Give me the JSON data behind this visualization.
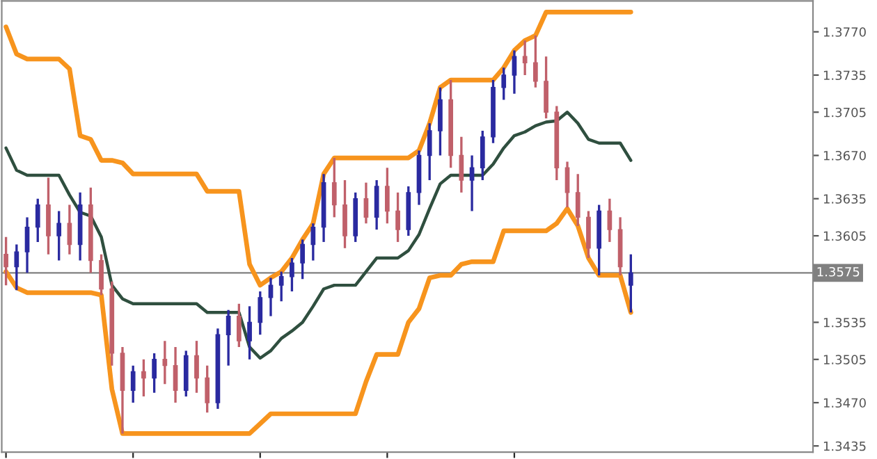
{
  "chart_data": {
    "type": "candlestick",
    "categories": [
      null,
      null,
      null,
      null,
      null,
      null,
      null,
      null,
      null,
      null,
      null,
      null,
      null,
      null,
      null,
      null,
      null,
      null,
      null,
      null,
      null,
      null,
      null,
      null,
      null,
      null,
      null,
      null,
      null,
      null,
      null,
      null,
      null,
      null,
      null,
      null,
      null,
      null,
      null,
      null,
      null,
      null,
      null,
      null,
      null,
      null,
      null,
      null,
      null,
      null,
      null,
      null,
      null,
      null,
      null,
      null,
      null,
      null,
      null,
      null
    ],
    "ohlc": [
      [
        1.359,
        1.3604,
        1.3565,
        1.358
      ],
      [
        1.358,
        1.3598,
        1.3561,
        1.3592
      ],
      [
        1.3592,
        1.362,
        1.3575,
        1.3612
      ],
      [
        1.3612,
        1.3635,
        1.36,
        1.363
      ],
      [
        1.363,
        1.3652,
        1.359,
        1.3605
      ],
      [
        1.3605,
        1.3625,
        1.3585,
        1.3615
      ],
      [
        1.3615,
        1.363,
        1.359,
        1.3598
      ],
      [
        1.3598,
        1.364,
        1.3585,
        1.363
      ],
      [
        1.363,
        1.3644,
        1.3575,
        1.3585
      ],
      [
        1.3585,
        1.359,
        1.3557,
        1.3562
      ],
      [
        1.3562,
        1.3568,
        1.35,
        1.351
      ],
      [
        1.351,
        1.3515,
        1.3445,
        1.348
      ],
      [
        1.348,
        1.35,
        1.347,
        1.3495
      ],
      [
        1.3495,
        1.3505,
        1.3475,
        1.349
      ],
      [
        1.349,
        1.351,
        1.3478,
        1.3505
      ],
      [
        1.3505,
        1.352,
        1.3485,
        1.35
      ],
      [
        1.35,
        1.3515,
        1.347,
        1.348
      ],
      [
        1.348,
        1.3512,
        1.3475,
        1.3508
      ],
      [
        1.3508,
        1.352,
        1.3478,
        1.349
      ],
      [
        1.349,
        1.35,
        1.3462,
        1.347
      ],
      [
        1.347,
        1.353,
        1.3465,
        1.3525
      ],
      [
        1.3525,
        1.3545,
        1.35,
        1.354
      ],
      [
        1.354,
        1.355,
        1.3515,
        1.352
      ],
      [
        1.352,
        1.3548,
        1.3505,
        1.3535
      ],
      [
        1.3535,
        1.356,
        1.3525,
        1.3555
      ],
      [
        1.3555,
        1.3571,
        1.354,
        1.3565
      ],
      [
        1.3565,
        1.3576,
        1.3552,
        1.3572
      ],
      [
        1.3572,
        1.3587,
        1.356,
        1.3583
      ],
      [
        1.3583,
        1.3602,
        1.357,
        1.3598
      ],
      [
        1.3598,
        1.3615,
        1.3585,
        1.3612
      ],
      [
        1.3612,
        1.3655,
        1.36,
        1.3648
      ],
      [
        1.3648,
        1.3668,
        1.362,
        1.363
      ],
      [
        1.363,
        1.365,
        1.3595,
        1.3605
      ],
      [
        1.3605,
        1.364,
        1.36,
        1.3635
      ],
      [
        1.3635,
        1.3648,
        1.3615,
        1.362
      ],
      [
        1.362,
        1.365,
        1.361,
        1.3645
      ],
      [
        1.3645,
        1.366,
        1.3615,
        1.3625
      ],
      [
        1.3625,
        1.364,
        1.36,
        1.361
      ],
      [
        1.361,
        1.3645,
        1.3605,
        1.364
      ],
      [
        1.364,
        1.3674,
        1.363,
        1.367
      ],
      [
        1.367,
        1.3696,
        1.365,
        1.369
      ],
      [
        1.369,
        1.3725,
        1.367,
        1.3715
      ],
      [
        1.3715,
        1.3731,
        1.366,
        1.367
      ],
      [
        1.367,
        1.3685,
        1.364,
        1.365
      ],
      [
        1.365,
        1.367,
        1.3625,
        1.366
      ],
      [
        1.366,
        1.369,
        1.365,
        1.3685
      ],
      [
        1.3685,
        1.3731,
        1.368,
        1.3725
      ],
      [
        1.3725,
        1.3741,
        1.3715,
        1.3735
      ],
      [
        1.3735,
        1.3755,
        1.372,
        1.375
      ],
      [
        1.375,
        1.3763,
        1.3735,
        1.3745
      ],
      [
        1.3745,
        1.3767,
        1.3725,
        1.373
      ],
      [
        1.373,
        1.375,
        1.37,
        1.3705
      ],
      [
        1.3705,
        1.371,
        1.365,
        1.366
      ],
      [
        1.366,
        1.3665,
        1.3628,
        1.364
      ],
      [
        1.364,
        1.3655,
        1.3613,
        1.362
      ],
      [
        1.362,
        1.3625,
        1.3587,
        1.3595
      ],
      [
        1.3595,
        1.363,
        1.3573,
        1.3625
      ],
      [
        1.3625,
        1.3635,
        1.36,
        1.361
      ],
      [
        1.361,
        1.362,
        1.3573,
        1.358
      ],
      [
        1.3565,
        1.359,
        1.3543,
        1.3575
      ]
    ],
    "colors": [
      "#c0606a",
      "#2a2aa0",
      "#2a2aa0",
      "#2a2aa0",
      "#c0606a",
      "#2a2aa0",
      "#c0606a",
      "#2a2aa0",
      "#c0606a",
      "#c0606a",
      "#c0606a",
      "#c0606a",
      "#2a2aa0",
      "#c0606a",
      "#2a2aa0",
      "#c0606a",
      "#c0606a",
      "#2a2aa0",
      "#c0606a",
      "#c0606a",
      "#2a2aa0",
      "#2a2aa0",
      "#c0606a",
      "#2a2aa0",
      "#2a2aa0",
      "#2a2aa0",
      "#2a2aa0",
      "#2a2aa0",
      "#2a2aa0",
      "#2a2aa0",
      "#2a2aa0",
      "#c0606a",
      "#c0606a",
      "#2a2aa0",
      "#c0606a",
      "#2a2aa0",
      "#c0606a",
      "#c0606a",
      "#2a2aa0",
      "#2a2aa0",
      "#2a2aa0",
      "#2a2aa0",
      "#c0606a",
      "#c0606a",
      "#2a2aa0",
      "#2a2aa0",
      "#2a2aa0",
      "#2a2aa0",
      "#2a2aa0",
      "#c0606a",
      "#c0606a",
      "#c0606a",
      "#c0606a",
      "#c0606a",
      "#c0606a",
      "#c0606a",
      "#2a2aa0",
      "#c0606a",
      "#c0606a",
      "#2a2aa0"
    ],
    "series": [
      {
        "type": "line",
        "color": "#f7941d",
        "values": [
          1.3774,
          1.3752,
          1.3748,
          1.3748,
          1.3748,
          1.3748,
          1.374,
          1.3686,
          1.3683,
          1.3666,
          1.3666,
          1.3664,
          1.3655,
          1.3655,
          1.3655,
          1.3655,
          1.3655,
          1.3655,
          1.3655,
          1.3641,
          1.3641,
          1.3641,
          1.3641,
          1.3582,
          1.3565,
          1.3571,
          1.3576,
          1.3587,
          1.3602,
          1.3615,
          1.3655,
          1.3668,
          1.3668,
          1.3668,
          1.3668,
          1.3668,
          1.3668,
          1.3668,
          1.3668,
          1.3674,
          1.3696,
          1.3725,
          1.3731,
          1.3731,
          1.3731,
          1.3731,
          1.3731,
          1.3741,
          1.3755,
          1.3763,
          1.3767,
          1.3786,
          1.3786,
          1.3786,
          1.3786,
          1.3786,
          1.3786,
          1.3786,
          1.3786,
          1.3786
        ]
      },
      {
        "type": "line",
        "color": "#2f4f3f",
        "values": [
          1.3676,
          1.3658,
          1.3654,
          1.3654,
          1.3654,
          1.3654,
          1.3638,
          1.3624,
          1.3621,
          1.3604,
          1.3565,
          1.3554,
          1.355,
          1.355,
          1.355,
          1.355,
          1.355,
          1.355,
          1.355,
          1.3543,
          1.3543,
          1.3543,
          1.3543,
          1.3515,
          1.3506,
          1.3512,
          1.3522,
          1.3528,
          1.3535,
          1.3548,
          1.3562,
          1.3565,
          1.3565,
          1.3565,
          1.3576,
          1.3587,
          1.3587,
          1.3587,
          1.3593,
          1.3606,
          1.3627,
          1.3647,
          1.3654,
          1.3654,
          1.3654,
          1.3654,
          1.3663,
          1.3676,
          1.3686,
          1.3689,
          1.3694,
          1.3697,
          1.3698,
          1.3705,
          1.3696,
          1.3683,
          1.368,
          1.368,
          1.368,
          1.3666
        ]
      },
      {
        "type": "line",
        "color": "#f7941d",
        "values": [
          1.3576,
          1.3563,
          1.3559,
          1.3559,
          1.3559,
          1.3559,
          1.3559,
          1.3559,
          1.3559,
          1.3557,
          1.3481,
          1.3445,
          1.3445,
          1.3445,
          1.3445,
          1.3445,
          1.3445,
          1.3445,
          1.3445,
          1.3445,
          1.3445,
          1.3445,
          1.3445,
          1.3445,
          1.3453,
          1.3461,
          1.3461,
          1.3461,
          1.3461,
          1.3461,
          1.3461,
          1.3461,
          1.3461,
          1.3461,
          1.3487,
          1.3509,
          1.3509,
          1.3509,
          1.3535,
          1.3546,
          1.3571,
          1.3573,
          1.3573,
          1.3582,
          1.3584,
          1.3584,
          1.3584,
          1.3609,
          1.3609,
          1.3609,
          1.3609,
          1.3609,
          1.3615,
          1.3627,
          1.3613,
          1.3587,
          1.3573,
          1.3573,
          1.3573,
          1.3543
        ]
      }
    ],
    "ylim": [
      1.343,
      1.3795
    ],
    "yticks": [
      {
        "value": 1.377,
        "label": "1.3770"
      },
      {
        "value": 1.3735,
        "label": "1.3735"
      },
      {
        "value": 1.3705,
        "label": "1.3705"
      },
      {
        "value": 1.367,
        "label": "1.3670"
      },
      {
        "value": 1.3635,
        "label": "1.3635"
      },
      {
        "value": 1.3605,
        "label": "1.3605"
      },
      {
        "value": 1.3535,
        "label": "1.3535"
      },
      {
        "value": 1.3505,
        "label": "1.3505"
      },
      {
        "value": 1.347,
        "label": "1.3470"
      },
      {
        "value": 1.3435,
        "label": "1.3435"
      }
    ],
    "ref_lines": [
      {
        "axis": "y",
        "value": 1.3575,
        "label": "1.3575",
        "color": "#808080"
      }
    ],
    "tick_labels": "y",
    "grid": false
  }
}
